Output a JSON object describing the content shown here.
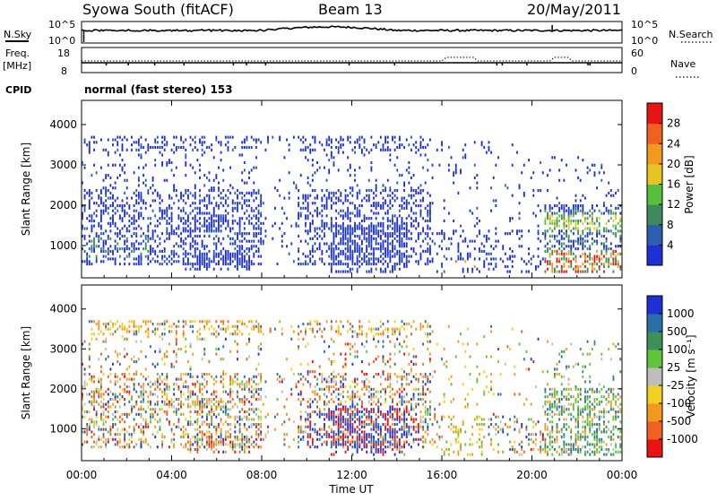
{
  "header": {
    "station": "Syowa South (fitACF)",
    "beam": "Beam 13",
    "date": "20/May/2011"
  },
  "noise_panel": {
    "left_label": "N.Sky",
    "left_ticks": [
      "10^5",
      "10^0"
    ],
    "right_ticks": [
      "10^5",
      "10^0"
    ],
    "right_label": "N.Search"
  },
  "freq_panel": {
    "left_label_line1": "Freq.",
    "left_label_line2": "[MHz]",
    "left_ticks": [
      "18",
      "8"
    ],
    "right_ticks": [
      "60",
      "0"
    ],
    "right_label": "Nave"
  },
  "cpid": {
    "label": "CPID",
    "value": "normal (fast stereo) 153"
  },
  "colors": {
    "power_scale": [
      "#1f2fd6",
      "#2c5fb0",
      "#3e8a5c",
      "#56c03c",
      "#e8c423",
      "#f39a1e",
      "#f06020",
      "#e81414"
    ],
    "velocity_scale": [
      "#1f2fd6",
      "#2c6fa8",
      "#3e8f5a",
      "#5fc43a",
      "#bdbdbd",
      "#f0d020",
      "#f39a1e",
      "#f06020",
      "#e81414"
    ]
  },
  "chart_data": [
    {
      "type": "heatmap",
      "title": "Power",
      "ylabel": "Slant Range [km]",
      "yticks": [
        "1000",
        "2000",
        "3000",
        "4000"
      ],
      "ylim": [
        200,
        4600
      ],
      "xlim_hours": [
        0,
        24
      ],
      "colorbar": {
        "label": "Power [dB]",
        "ticks": [
          "4",
          "8",
          "12",
          "16",
          "20",
          "24",
          "28"
        ],
        "range": [
          0,
          32
        ]
      }
    },
    {
      "type": "heatmap",
      "title": "Velocity",
      "ylabel": "Slant Range [km]",
      "xlabel": "Time UT",
      "xticks": [
        "00:00",
        "04:00",
        "08:00",
        "12:00",
        "16:00",
        "20:00",
        "00:00"
      ],
      "yticks": [
        "1000",
        "2000",
        "3000",
        "4000"
      ],
      "ylim": [
        200,
        4600
      ],
      "xlim_hours": [
        0,
        24
      ],
      "colorbar": {
        "label": "Velocity [m s⁻¹]",
        "ticks": [
          "1000",
          "500",
          "100",
          "25",
          "-25",
          "-100",
          "-500",
          "-1000"
        ]
      }
    }
  ]
}
